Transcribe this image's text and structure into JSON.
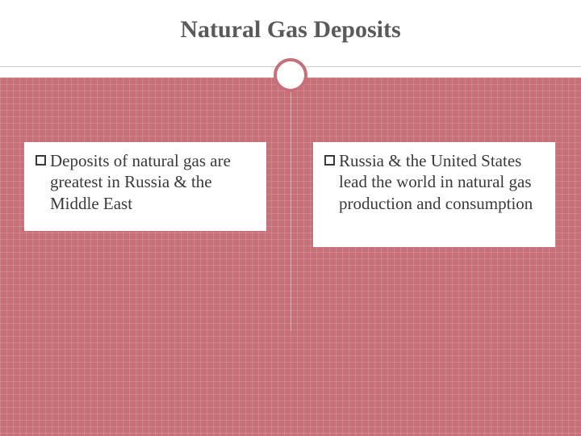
{
  "slide": {
    "title": "Natural Gas Deposits",
    "title_color": "#5a5a5a",
    "title_fontsize": 30,
    "background_accent": "#c7707a",
    "grid_color": "rgba(255,255,255,0.15)",
    "circle_border": "#c7707a",
    "bullets": {
      "left": {
        "text": "Deposits of natural gas are greatest in Russia & the Middle East"
      },
      "right": {
        "text": "Russia & the United States lead the world in natural gas production and consumption"
      }
    },
    "body_fontsize": 21,
    "body_color": "#3a3a3a"
  }
}
